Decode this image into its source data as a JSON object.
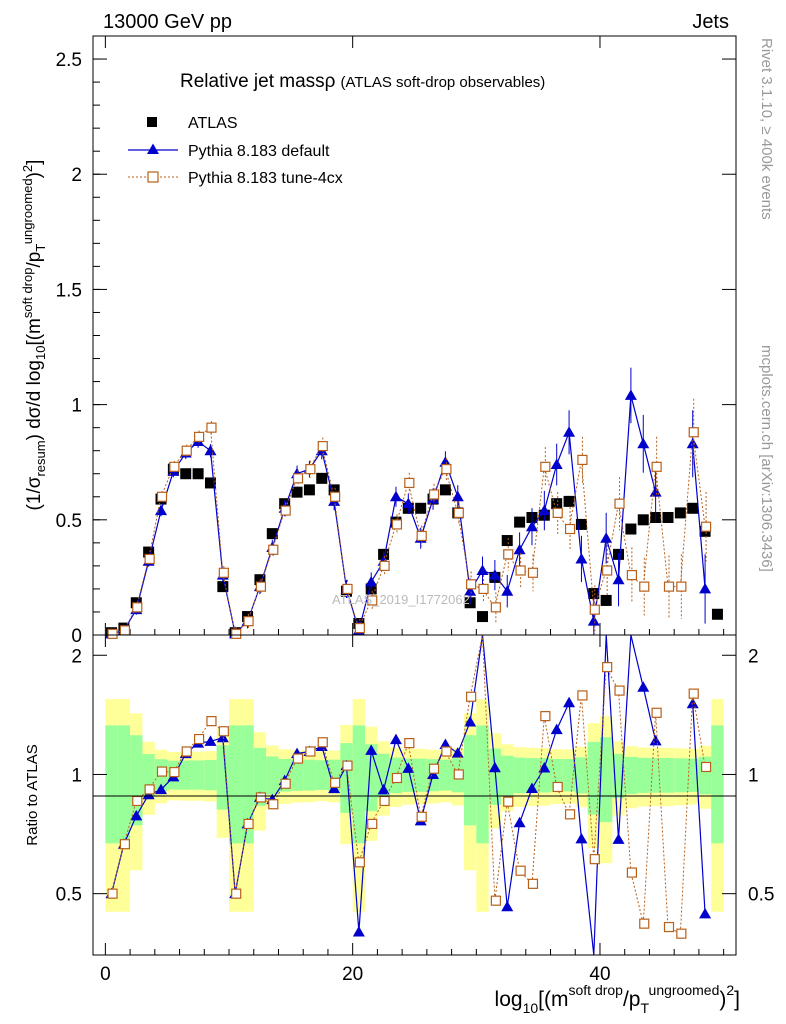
{
  "header": {
    "energy_label": "13000 GeV pp",
    "process_label": "Jets",
    "rivet_label": "Rivet 3.1.10, ≥ 400k events",
    "mcplots_label": "mcplots.cern.ch [arXiv:1306.3436]",
    "watermark": "ATLAS_2019_I1772062"
  },
  "chart_data": {
    "type": "scatter",
    "title": "Relative jet massρ",
    "subtitle": "(ATLAS soft-drop observables)",
    "xlabel": "log10[(m^soft drop/pT^ungroomed)^2]",
    "ylabel": "(1/σresum) dσ/d log10[(m^soft drop/pT^ungroomed)^2]",
    "ratio_ylabel": "Ratio to ATLAS",
    "xlim": [
      -1,
      51
    ],
    "ylim": [
      0,
      2.6
    ],
    "ratio_ylim": [
      0.35,
      2.25
    ],
    "x_ticks": [
      "0",
      "20",
      "40"
    ],
    "y_ticks": [
      "0",
      "0.5",
      "1",
      "1.5",
      "2",
      "2.5"
    ],
    "ratio_ticks": [
      "0.5",
      "1",
      "2"
    ],
    "legend": [
      "ATLAS",
      "Pythia 8.183 default",
      "Pythia 8.183 tune-4cx"
    ],
    "x": [
      0.5,
      1.5,
      2.5,
      3.5,
      4.5,
      5.5,
      6.5,
      7.5,
      8.5,
      9.5,
      10.5,
      11.5,
      12.5,
      13.5,
      14.5,
      15.5,
      16.5,
      17.5,
      18.5,
      19.5,
      20.5,
      21.5,
      22.5,
      23.5,
      24.5,
      25.5,
      26.5,
      27.5,
      28.5,
      29.5,
      30.5,
      31.5,
      32.5,
      33.5,
      34.5,
      35.5,
      36.5,
      37.5,
      38.5,
      39.5,
      40.5,
      41.5,
      42.5,
      43.5,
      44.5,
      45.5,
      46.5,
      47.5,
      48.5,
      49.5
    ],
    "series": [
      {
        "name": "ATLAS",
        "values": [
          0.01,
          0.03,
          0.14,
          0.36,
          0.59,
          0.72,
          0.7,
          0.7,
          0.66,
          0.21,
          0.01,
          0.08,
          0.24,
          0.44,
          0.57,
          0.62,
          0.63,
          0.68,
          0.63,
          0.19,
          0.05,
          0.2,
          0.35,
          0.49,
          0.55,
          0.55,
          0.59,
          0.63,
          0.53,
          0.14,
          0.08,
          0.25,
          0.41,
          0.49,
          0.51,
          0.52,
          0.57,
          0.58,
          0.48,
          0.18,
          0.15,
          0.35,
          0.46,
          0.5,
          0.51,
          0.51,
          0.53,
          0.55,
          0.45,
          0.09
        ]
      },
      {
        "name": "Pythia 8.183 default",
        "values": [
          0.005,
          0.02,
          0.11,
          0.32,
          0.54,
          0.71,
          0.79,
          0.84,
          0.8,
          0.26,
          0.005,
          0.06,
          0.21,
          0.38,
          0.55,
          0.7,
          0.72,
          0.8,
          0.58,
          0.2,
          0.02,
          0.23,
          0.32,
          0.6,
          0.57,
          0.42,
          0.59,
          0.75,
          0.6,
          0.19,
          0.28,
          0.26,
          0.19,
          0.37,
          0.47,
          0.54,
          0.74,
          0.88,
          0.33,
          0.06,
          0.42,
          0.24,
          1.04,
          0.83,
          0.62,
          null,
          null,
          0.83,
          0.2,
          null
        ]
      },
      {
        "name": "Pythia 8.183 tune-4cx",
        "values": [
          0.005,
          0.02,
          0.12,
          0.33,
          0.6,
          0.73,
          0.8,
          0.86,
          0.9,
          0.27,
          0.005,
          0.06,
          0.21,
          0.37,
          0.54,
          0.68,
          0.72,
          0.82,
          0.6,
          0.2,
          0.03,
          0.15,
          0.3,
          0.48,
          0.66,
          0.43,
          0.61,
          0.72,
          0.53,
          0.22,
          0.2,
          0.12,
          0.35,
          0.28,
          0.27,
          0.73,
          0.53,
          0.46,
          0.76,
          0.11,
          0.28,
          0.57,
          0.26,
          0.21,
          0.73,
          0.21,
          0.21,
          0.88,
          0.47,
          null
        ]
      }
    ]
  }
}
